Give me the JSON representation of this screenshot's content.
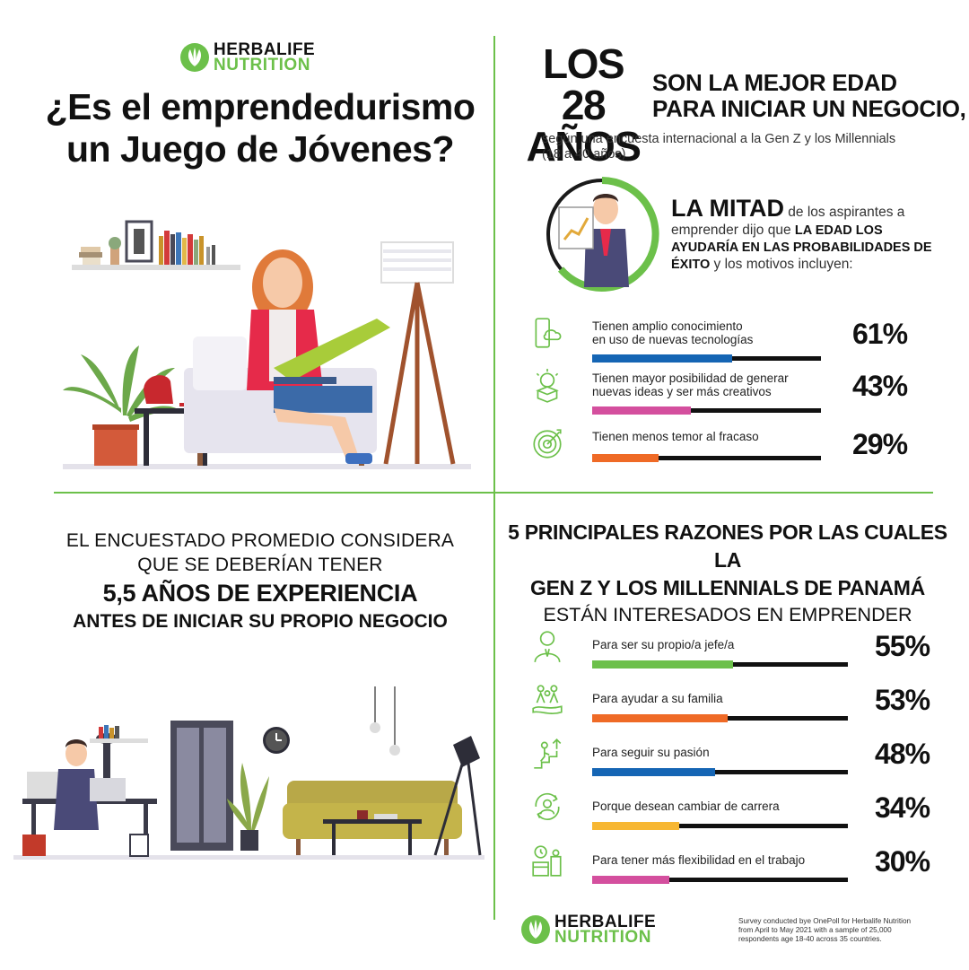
{
  "colors": {
    "brand_green": "#6cc04a",
    "blue": "#1565b4",
    "magenta": "#d44f9e",
    "orange": "#ef6a26",
    "green": "#6cc04a",
    "yellow": "#f7b733"
  },
  "logo_top": {
    "line1": "HERBALIFE",
    "line2": "NUTRITION"
  },
  "logo_bottom": {
    "line1": "HERBALIFE",
    "line2": "NUTRITION"
  },
  "main_title": {
    "line1": "¿Es el emprendedurismo",
    "line2": "un Juego de Jóvenes?"
  },
  "age_headline": {
    "big_line1": "LOS 28",
    "big_line2": "AÑOS",
    "rest_line1": "SON LA MEJOR EDAD",
    "rest_line2": "PARA INICIAR UN NEGOCIO,"
  },
  "survey_note": {
    "line1": "según una encuesta internacional a la Gen Z y los Millennials",
    "line2": "(18 a 40 años)"
  },
  "mitad": {
    "big": "LA MITAD",
    "t1": " de los aspirantes a emprender dijo que ",
    "bold": "LA EDAD LOS AYUDARÍA EN LAS PROBABILIDADES DE ÉXITO",
    "t2": " y los motivos incluyen:"
  },
  "motives": [
    {
      "label_line1": "Tienen amplio conocimiento",
      "label_line2": "en uso de nuevas tecnologías",
      "pct": "61%",
      "value": 61,
      "color": "#1565b4",
      "icon": "phone-cloud-icon"
    },
    {
      "label_line1": "Tienen mayor posibilidad de generar",
      "label_line2": "nuevas ideas y ser más creativos",
      "pct": "43%",
      "value": 43,
      "color": "#d44f9e",
      "icon": "lightbulb-box-icon"
    },
    {
      "label_line1": "Tienen menos temor al fracaso",
      "label_line2": "",
      "pct": "29%",
      "value": 29,
      "color": "#ef6a26",
      "icon": "target-icon"
    }
  ],
  "experience": {
    "line1": "EL ENCUESTADO PROMEDIO CONSIDERA",
    "line2": "QUE SE DEBERÍAN TENER",
    "line3": "5,5 AÑOS DE EXPERIENCIA",
    "line4": "ANTES DE INICIAR SU PROPIO NEGOCIO"
  },
  "reasons_title": {
    "line1": "5 PRINCIPALES RAZONES POR LAS CUALES LA",
    "line2": "GEN Z Y LOS MILLENNIALS DE PANAMÁ",
    "line3": "ESTÁN INTERESADOS EN EMPRENDER"
  },
  "reasons": [
    {
      "label": "Para ser su propio/a jefe/a",
      "pct": "55%",
      "value": 55,
      "color": "#6cc04a",
      "icon": "boss-person-icon"
    },
    {
      "label": "Para ayudar a su familia",
      "pct": "53%",
      "value": 53,
      "color": "#ef6a26",
      "icon": "family-hand-icon"
    },
    {
      "label": "Para seguir su pasión",
      "pct": "48%",
      "value": 48,
      "color": "#1565b4",
      "icon": "stairs-climb-icon"
    },
    {
      "label": "Porque desean cambiar de carrera",
      "pct": "34%",
      "value": 34,
      "color": "#f7b733",
      "icon": "career-cycle-icon"
    },
    {
      "label": "Para tener más flexibilidad en el trabajo",
      "pct": "30%",
      "value": 30,
      "color": "#d44f9e",
      "icon": "calendar-clock-icon"
    }
  ],
  "footnote": "Survey conducted bye OnePoll for Herbalife Nutrition from April to May 2021 with a sample of 25,000 respondents age 18-40 across 35 countries."
}
